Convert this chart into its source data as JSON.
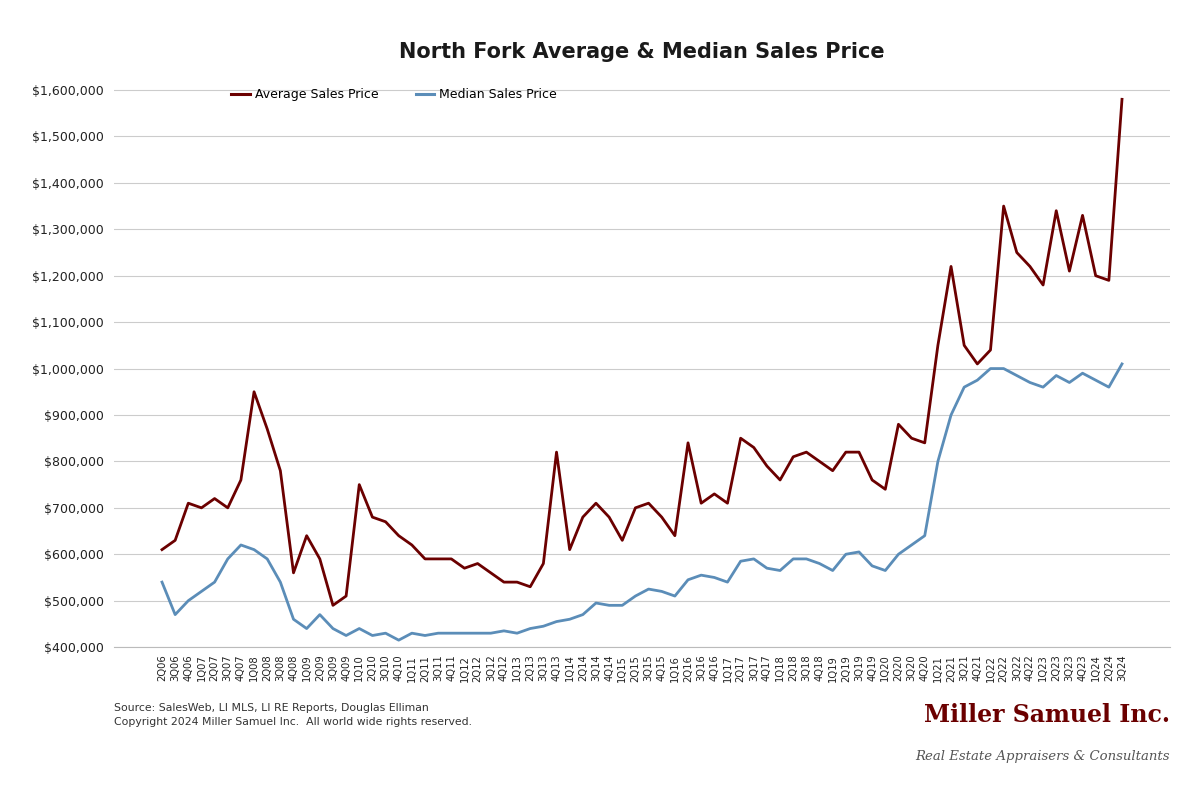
{
  "title": "North Fork Average & Median Sales Price",
  "title_color": "#1a1a1a",
  "background_color": "#FFFFFF",
  "plot_bg_color": "#FFFFFF",
  "grid_color": "#CCCCCC",
  "avg_color": "#6B0000",
  "med_color": "#5B8DB8",
  "avg_label": "Average Sales Price",
  "med_label": "Median Sales Price",
  "source_text": "Source: SalesWeb, LI MLS, LI RE Reports, Douglas Elliman\nCopyright 2024 Miller Samuel Inc.  All world wide rights reserved.",
  "watermark_line1": "Miller Samuel Inc.",
  "watermark_line2": "Real Estate Appraisers & Consultants",
  "watermark_color": "#6B0000",
  "watermark_sub_color": "#555555",
  "ylim": [
    400000,
    1640000
  ],
  "yticks": [
    400000,
    500000,
    600000,
    700000,
    800000,
    900000,
    1000000,
    1100000,
    1200000,
    1300000,
    1400000,
    1500000,
    1600000
  ],
  "labels": [
    "2Q06",
    "3Q06",
    "4Q06",
    "1Q07",
    "2Q07",
    "3Q07",
    "4Q07",
    "1Q08",
    "2Q08",
    "3Q08",
    "4Q08",
    "1Q09",
    "2Q09",
    "3Q09",
    "4Q09",
    "1Q10",
    "2Q10",
    "3Q10",
    "4Q10",
    "1Q11",
    "2Q11",
    "3Q11",
    "4Q11",
    "1Q12",
    "2Q12",
    "3Q12",
    "4Q12",
    "1Q13",
    "2Q13",
    "3Q13",
    "4Q13",
    "1Q14",
    "2Q14",
    "3Q14",
    "4Q14",
    "1Q15",
    "2Q15",
    "3Q15",
    "4Q15",
    "1Q16",
    "2Q16",
    "3Q16",
    "4Q16",
    "1Q17",
    "2Q17",
    "3Q17",
    "4Q17",
    "1Q18",
    "2Q18",
    "3Q18",
    "4Q18",
    "1Q19",
    "2Q19",
    "3Q19",
    "4Q19",
    "1Q20",
    "2Q20",
    "3Q20",
    "4Q20",
    "1Q21",
    "2Q21",
    "3Q21",
    "4Q21",
    "1Q22",
    "2Q22",
    "3Q22",
    "4Q22",
    "1Q23",
    "2Q23",
    "3Q23",
    "4Q23",
    "1Q24",
    "2Q24",
    "3Q24"
  ],
  "avg_values": [
    610000,
    630000,
    710000,
    700000,
    720000,
    700000,
    760000,
    950000,
    870000,
    780000,
    560000,
    640000,
    590000,
    490000,
    510000,
    750000,
    680000,
    670000,
    640000,
    620000,
    590000,
    590000,
    590000,
    570000,
    580000,
    560000,
    540000,
    540000,
    530000,
    580000,
    820000,
    610000,
    680000,
    710000,
    680000,
    630000,
    700000,
    710000,
    680000,
    640000,
    840000,
    710000,
    730000,
    710000,
    850000,
    830000,
    790000,
    760000,
    810000,
    820000,
    800000,
    780000,
    820000,
    820000,
    760000,
    740000,
    880000,
    850000,
    840000,
    1050000,
    1220000,
    1050000,
    1010000,
    1040000,
    1350000,
    1250000,
    1220000,
    1180000,
    1340000,
    1210000,
    1330000,
    1200000,
    1190000,
    1580000
  ],
  "med_values": [
    540000,
    470000,
    500000,
    520000,
    540000,
    590000,
    620000,
    610000,
    590000,
    540000,
    460000,
    440000,
    470000,
    440000,
    425000,
    440000,
    425000,
    430000,
    415000,
    430000,
    425000,
    430000,
    430000,
    430000,
    430000,
    430000,
    435000,
    430000,
    440000,
    445000,
    455000,
    460000,
    470000,
    495000,
    490000,
    490000,
    510000,
    525000,
    520000,
    510000,
    545000,
    555000,
    550000,
    540000,
    585000,
    590000,
    570000,
    565000,
    590000,
    590000,
    580000,
    565000,
    600000,
    605000,
    575000,
    565000,
    600000,
    620000,
    640000,
    800000,
    900000,
    960000,
    975000,
    1000000,
    1000000,
    985000,
    970000,
    960000,
    985000,
    970000,
    990000,
    975000,
    960000,
    1010000
  ]
}
